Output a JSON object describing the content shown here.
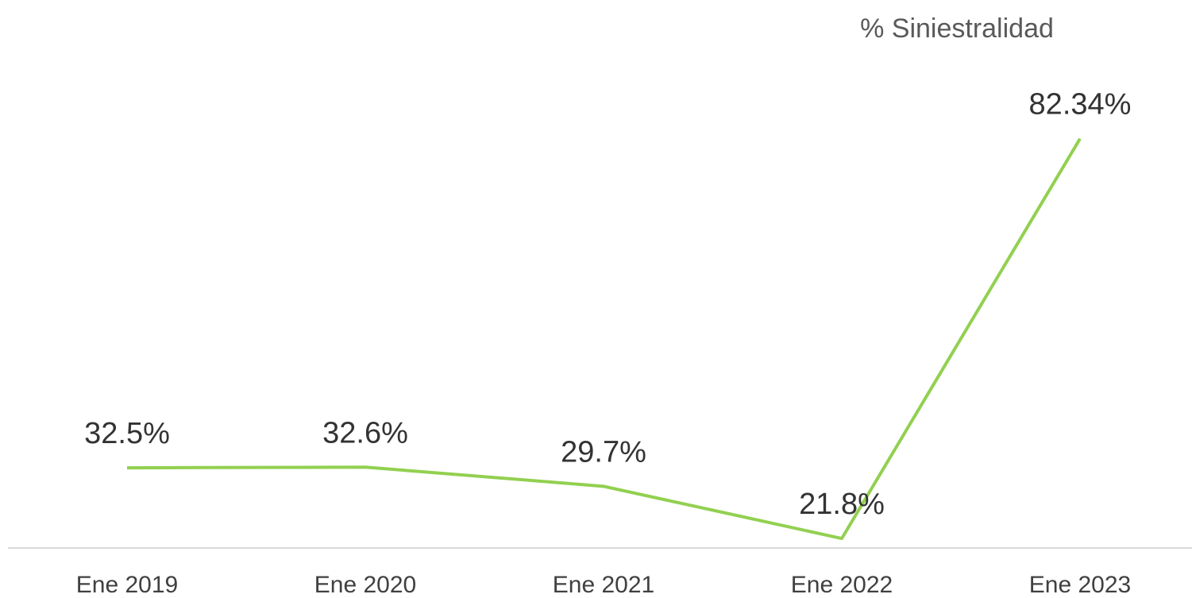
{
  "chart_data": {
    "type": "line",
    "title": "% Siniestralidad",
    "categories": [
      "Ene 2019",
      "Ene 2020",
      "Ene 2021",
      "Ene 2022",
      "Ene 2023"
    ],
    "values": [
      32.5,
      32.6,
      29.7,
      21.8,
      82.34
    ],
    "value_labels": [
      "32.5%",
      "32.6%",
      "29.7%",
      "21.8%",
      "82.34%"
    ],
    "color": "#92d050",
    "ylim": [
      20,
      90
    ]
  }
}
